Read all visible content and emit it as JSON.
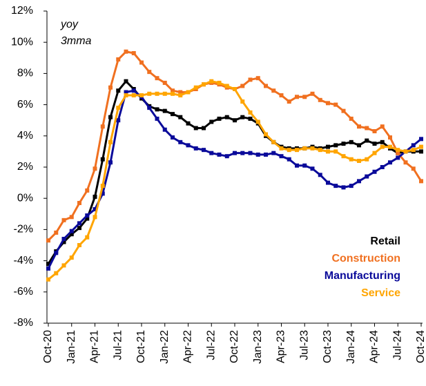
{
  "chart_data": {
    "type": "line",
    "annotations": [
      "yoy",
      "3mma"
    ],
    "categories": [
      "Oct-20",
      null,
      null,
      "Jan-21",
      null,
      null,
      "Apr-21",
      null,
      null,
      "Jul-21",
      null,
      null,
      "Oct-21",
      null,
      null,
      "Jan-22",
      null,
      null,
      "Apr-22",
      null,
      null,
      "Jul-22",
      null,
      null,
      "Oct-22",
      null,
      null,
      "Jan-23",
      null,
      null,
      "Apr-23",
      null,
      null,
      "Jul-23",
      null,
      null,
      "Oct-23",
      null,
      null,
      "Jan-24",
      null,
      null,
      "Apr-24",
      null,
      null,
      "Jul-24",
      null,
      null,
      "Oct-24"
    ],
    "series": [
      {
        "name": "Retail",
        "color": "#000000",
        "values": [
          -4.2,
          -3.4,
          -2.8,
          -2.3,
          -1.9,
          -1.3,
          0.1,
          2.5,
          5.2,
          6.9,
          7.5,
          7.0,
          6.4,
          5.9,
          5.7,
          5.6,
          5.4,
          5.2,
          4.8,
          4.5,
          4.5,
          4.9,
          5.1,
          5.2,
          5.0,
          5.2,
          5.1,
          4.8,
          4.0,
          3.6,
          3.3,
          3.2,
          3.2,
          3.2,
          3.3,
          3.2,
          3.3,
          3.4,
          3.5,
          3.6,
          3.4,
          3.7,
          3.5,
          3.6,
          3.2,
          2.9,
          3.0,
          3.0,
          3.0
        ]
      },
      {
        "name": "Construction",
        "color": "#f07020",
        "values": [
          -2.7,
          -2.2,
          -1.4,
          -1.2,
          -0.3,
          0.5,
          1.9,
          4.6,
          7.1,
          8.9,
          9.4,
          9.3,
          8.7,
          8.1,
          7.7,
          7.4,
          6.9,
          6.8,
          6.8,
          7.0,
          7.3,
          7.4,
          7.3,
          7.1,
          7.0,
          7.2,
          7.6,
          7.7,
          7.2,
          6.9,
          6.6,
          6.2,
          6.5,
          6.5,
          6.7,
          6.3,
          6.1,
          6.0,
          5.6,
          5.1,
          4.6,
          4.5,
          4.3,
          4.6,
          3.9,
          2.9,
          2.3,
          1.9,
          1.1
        ]
      },
      {
        "name": "Manufacturing",
        "color": "#0a0a9a",
        "values": [
          -4.5,
          -3.5,
          -2.6,
          -2.1,
          -1.6,
          -1.1,
          -0.7,
          0.3,
          2.3,
          5.0,
          6.8,
          6.9,
          6.5,
          5.8,
          5.1,
          4.4,
          3.9,
          3.6,
          3.4,
          3.2,
          3.1,
          2.9,
          2.8,
          2.7,
          2.9,
          2.9,
          2.9,
          2.8,
          2.8,
          2.9,
          2.7,
          2.5,
          2.1,
          2.1,
          1.9,
          1.5,
          1.0,
          0.8,
          0.7,
          0.8,
          1.1,
          1.4,
          1.7,
          2.0,
          2.3,
          2.6,
          3.0,
          3.4,
          3.8
        ]
      },
      {
        "name": "Service",
        "color": "#ffa500",
        "values": [
          -5.2,
          -4.8,
          -4.3,
          -3.8,
          -3.0,
          -2.5,
          -1.2,
          0.8,
          3.6,
          5.8,
          6.6,
          6.6,
          6.6,
          6.7,
          6.7,
          6.7,
          6.7,
          6.6,
          6.8,
          7.1,
          7.3,
          7.5,
          7.4,
          7.2,
          7.0,
          6.2,
          5.5,
          4.9,
          4.1,
          3.6,
          3.2,
          3.1,
          3.1,
          3.2,
          3.2,
          3.1,
          3.0,
          3.0,
          2.7,
          2.5,
          2.4,
          2.5,
          2.9,
          3.3,
          3.3,
          3.1,
          3.0,
          3.1,
          3.3
        ]
      }
    ],
    "ylim": [
      -8,
      12
    ],
    "yticks": [
      {
        "value": -8,
        "label": "-8%"
      },
      {
        "value": -6,
        "label": "-6%"
      },
      {
        "value": -4,
        "label": "-4%"
      },
      {
        "value": -2,
        "label": "-2%"
      },
      {
        "value": 0,
        "label": "0%"
      },
      {
        "value": 2,
        "label": "2%"
      },
      {
        "value": 4,
        "label": "4%"
      },
      {
        "value": 6,
        "label": "6%"
      },
      {
        "value": 8,
        "label": "8%"
      },
      {
        "value": 10,
        "label": "10%"
      },
      {
        "value": 12,
        "label": "12%"
      }
    ],
    "legend": "lower right"
  }
}
